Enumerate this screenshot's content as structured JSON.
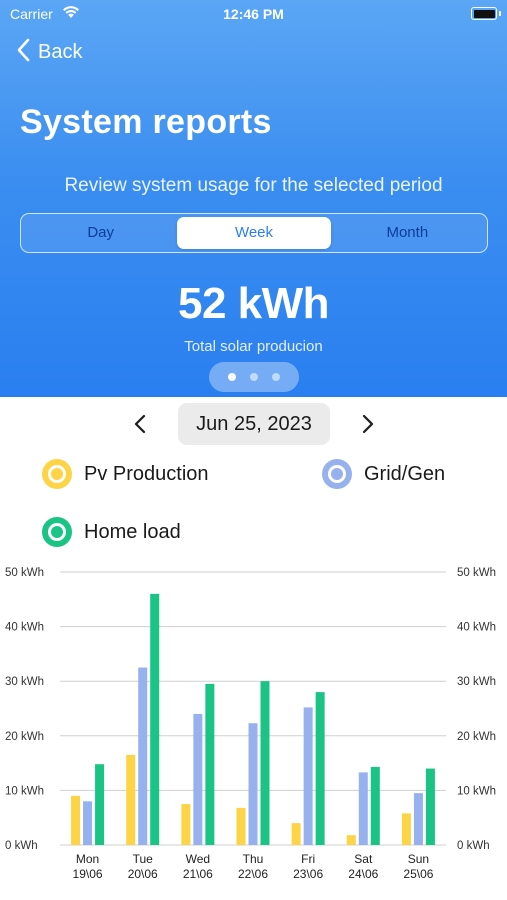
{
  "status_bar": {
    "carrier": "Carrier",
    "time": "12:46 PM"
  },
  "nav": {
    "back_label": "Back"
  },
  "header": {
    "title": "System reports",
    "subtitle": "Review system usage for the selected period"
  },
  "period_tabs": [
    {
      "label": "Day",
      "selected": false
    },
    {
      "label": "Week",
      "selected": true
    },
    {
      "label": "Month",
      "selected": false
    }
  ],
  "summary": {
    "value": "52 kWh",
    "caption": "Total solar producion"
  },
  "pager": {
    "pages": 3,
    "current": 1
  },
  "date_selector": {
    "date": "Jun 25, 2023"
  },
  "legend": [
    {
      "label": "Pv Production",
      "color": "#fdd446"
    },
    {
      "label": "Grid/Gen",
      "color": "#97b0ee"
    },
    {
      "label": "Home load",
      "color": "#19c485"
    }
  ],
  "chart_data": {
    "type": "bar",
    "title": "",
    "xlabel": "",
    "ylabel": "",
    "ylim": [
      0,
      50
    ],
    "y_ticks": [
      "0 kWh",
      "10 kWh",
      "20 kWh",
      "30 kWh",
      "40 kWh",
      "50 kWh"
    ],
    "y_tick_values": [
      0,
      10,
      20,
      30,
      40,
      50
    ],
    "grid": true,
    "categories": [
      "Mon",
      "Tue",
      "Wed",
      "Thu",
      "Fri",
      "Sat",
      "Sun"
    ],
    "category_dates": [
      "19\\06",
      "20\\06",
      "21\\06",
      "22\\06",
      "23\\06",
      "24\\06",
      "25\\06"
    ],
    "series": [
      {
        "name": "Pv Production",
        "color": "#fdd446",
        "values": [
          9,
          16.5,
          7.5,
          6.8,
          4,
          1.8,
          5.8
        ]
      },
      {
        "name": "Grid/Gen",
        "color": "#97b0ee",
        "values": [
          8,
          32.5,
          24,
          22.3,
          25.2,
          13.3,
          9.5
        ]
      },
      {
        "name": "Home load",
        "color": "#19c485",
        "values": [
          14.8,
          46,
          29.5,
          30,
          28,
          14.3,
          14
        ]
      }
    ]
  }
}
